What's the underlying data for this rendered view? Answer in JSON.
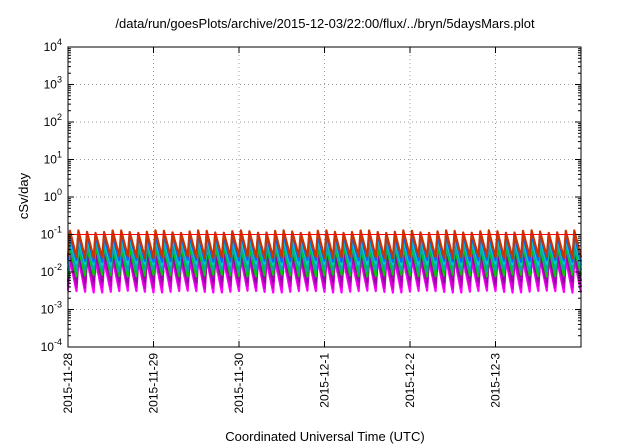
{
  "chart_data": {
    "type": "line",
    "title": "/data/run/goesPlots/archive/2015-12-03/22:00/flux/../bryn/5daysMars.plot",
    "xlabel": "Coordinated Universal Time (UTC)",
    "ylabel": "cSv/day",
    "yscale": "log",
    "ylim": [
      0.0001,
      10000
    ],
    "yticks": [
      {
        "value": 0.0001,
        "base": "10",
        "exp": "-4"
      },
      {
        "value": 0.001,
        "base": "10",
        "exp": "-3"
      },
      {
        "value": 0.01,
        "base": "10",
        "exp": "-2"
      },
      {
        "value": 0.1,
        "base": "10",
        "exp": "-1"
      },
      {
        "value": 1,
        "base": "10",
        "exp": "0"
      },
      {
        "value": 10,
        "base": "10",
        "exp": "1"
      },
      {
        "value": 100,
        "base": "10",
        "exp": "2"
      },
      {
        "value": 1000,
        "base": "10",
        "exp": "3"
      },
      {
        "value": 10000,
        "base": "10",
        "exp": "4"
      }
    ],
    "xlim": [
      "2015-11-28",
      "2015-12-04"
    ],
    "xticks": [
      "2015-11-28",
      "2015-11-29",
      "2015-11-30",
      "2015-12-1",
      "2015-12-2",
      "2015-12-3"
    ],
    "grid": true,
    "reference_line": {
      "value": 0.1,
      "color": "#ff0000"
    },
    "cycles_per_day": 10,
    "series": [
      {
        "color": "#ff00ff",
        "peak": 0.022,
        "trough": 0.003
      },
      {
        "color": "#cc00cc",
        "peak": 0.028,
        "trough": 0.004
      },
      {
        "color": "#9900aa",
        "peak": 0.034,
        "trough": 0.0055
      },
      {
        "color": "#00cc00",
        "peak": 0.05,
        "trough": 0.008
      },
      {
        "color": "#00aaaa",
        "peak": 0.065,
        "trough": 0.011
      },
      {
        "color": "#00cccc",
        "peak": 0.08,
        "trough": 0.016
      },
      {
        "color": "#0066ff",
        "peak": 0.1,
        "trough": 0.02
      },
      {
        "color": "#cc3300",
        "peak": 0.12,
        "trough": 0.025
      }
    ]
  }
}
